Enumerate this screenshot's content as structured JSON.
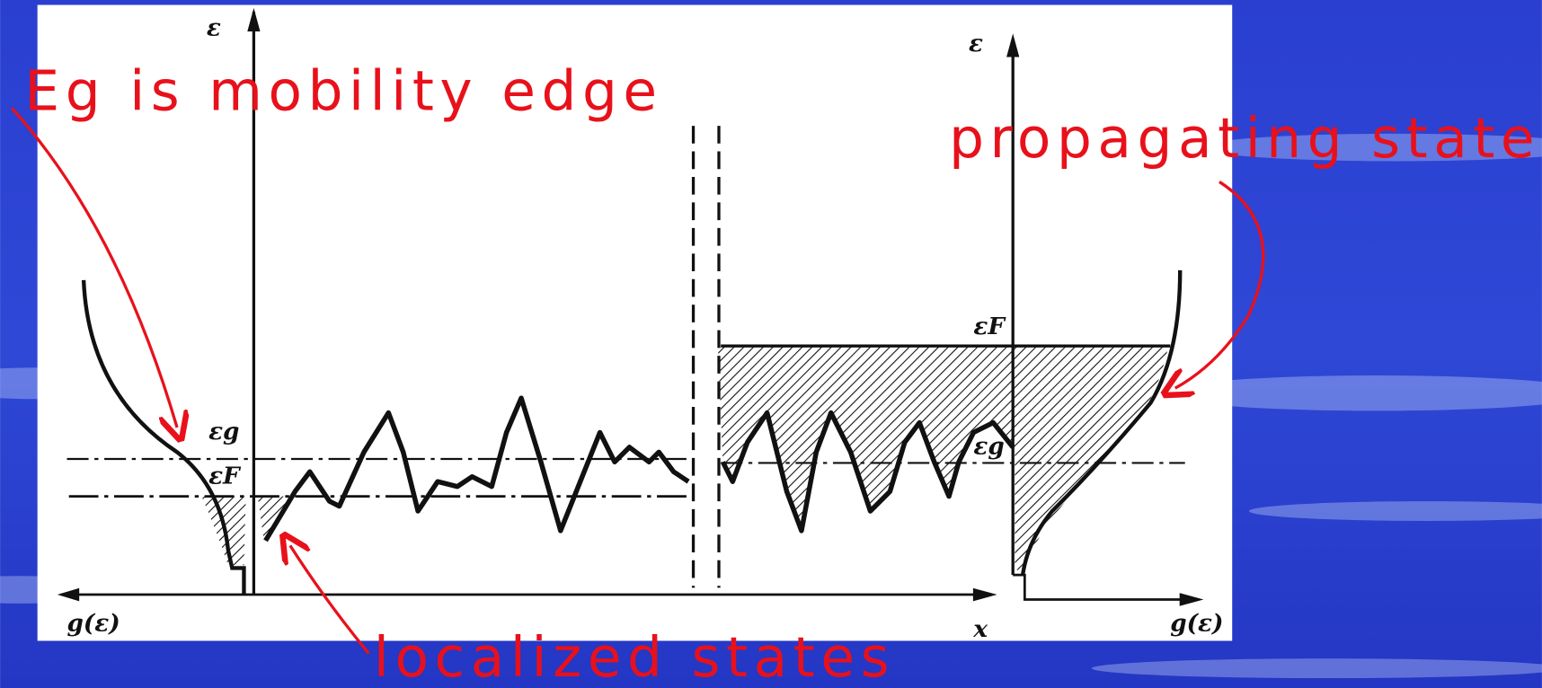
{
  "annotations": {
    "mobility_edge": "Eg is mobility edge",
    "propagating": "propagating states",
    "localized": "localized states"
  },
  "labels": {
    "left_energy_axis": "ε",
    "right_energy_axis": "ε",
    "left_eg": "εg",
    "left_ef": "εF",
    "right_ef": "εF",
    "right_eg": "εg",
    "left_dos_axis": "g(ε)",
    "position_axis": "x",
    "right_dos_axis": "g(ε)"
  }
}
